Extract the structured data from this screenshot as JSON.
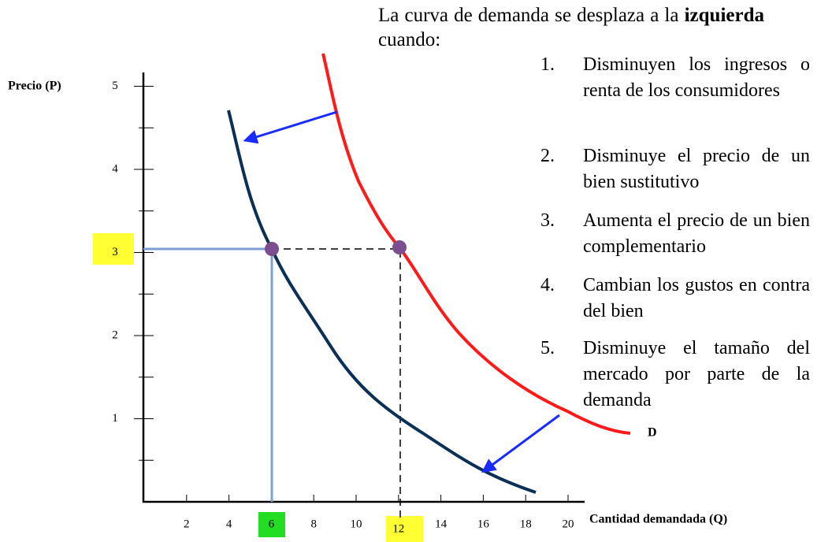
{
  "header": {
    "line1": "La curva de demanda se desplaza a la",
    "bold": "izquierda",
    "rest": "cuando:"
  },
  "list": [
    {
      "number": "1.",
      "text": "Disminuyen los ingresos o renta de los consumidores"
    },
    {
      "number": "2.",
      "text": "Disminuye el precio de un bien sustitutivo"
    },
    {
      "number": "3.",
      "text": "Aumenta el precio de un bien complementario"
    },
    {
      "number": "4.",
      "text": "Cambian los gustos en contra del bien"
    },
    {
      "number": "5.",
      "text": "Disminuye el tamaño del mercado por parte de la demanda"
    }
  ],
  "axes": {
    "y_label": "Precio (P)",
    "x_label": "Cantidad demandada (Q)",
    "yticks": [
      1,
      2,
      3,
      4,
      5
    ],
    "xticks": [
      2,
      4,
      6,
      8,
      10,
      12,
      14,
      16,
      18,
      20
    ]
  },
  "curve_label": "D"
}
